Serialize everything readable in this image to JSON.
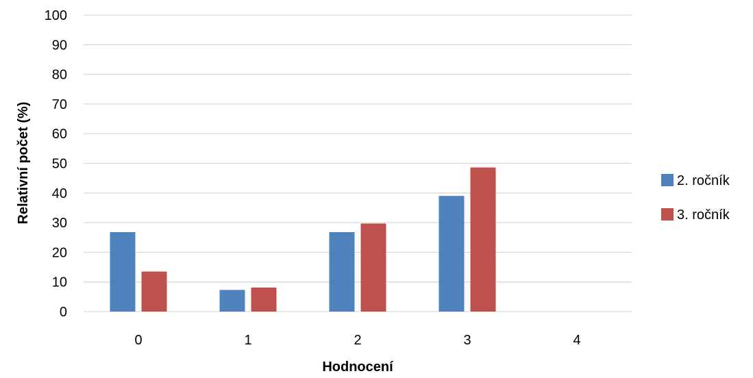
{
  "chart_data": {
    "type": "bar",
    "title": "",
    "xlabel": "Hodnocení",
    "ylabel": "Relativní počet (%)",
    "ylim": [
      0,
      100
    ],
    "yticks": [
      0,
      10,
      20,
      30,
      40,
      50,
      60,
      70,
      80,
      90,
      100
    ],
    "categories": [
      "0",
      "1",
      "2",
      "3",
      "4"
    ],
    "series": [
      {
        "name": "2. ročník",
        "color": "#4f81bd",
        "values": [
          26.8,
          7.3,
          26.8,
          39.0,
          0
        ]
      },
      {
        "name": "3. ročník",
        "color": "#c0504d",
        "values": [
          13.5,
          8.1,
          29.7,
          48.6,
          0
        ]
      }
    ],
    "grid": true,
    "legend_position": "right"
  }
}
